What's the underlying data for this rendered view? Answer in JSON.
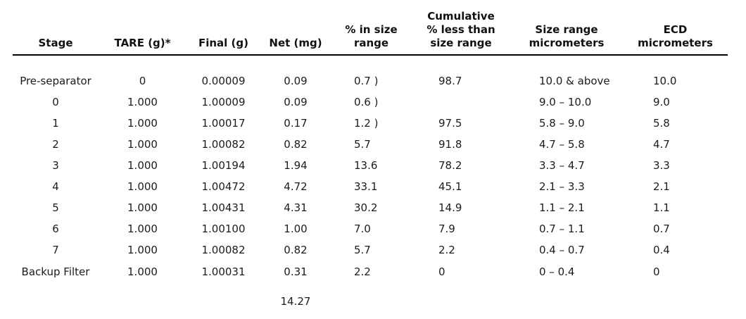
{
  "table": {
    "columns": [
      {
        "key": "stage",
        "label": "Stage"
      },
      {
        "key": "tare",
        "label": "TARE (g)*"
      },
      {
        "key": "final",
        "label": "Final (g)"
      },
      {
        "key": "net",
        "label": "Net (mg)"
      },
      {
        "key": "pct_in_range",
        "label": "% in size\nrange"
      },
      {
        "key": "cum_pct",
        "label": "Cumulative\n% less than\nsize range"
      },
      {
        "key": "size_range",
        "label": "Size range\nmicrometers"
      },
      {
        "key": "ecd",
        "label": "ECD\nmicrometers"
      }
    ],
    "rows": [
      {
        "stage": "Pre-separator",
        "tare": "0",
        "final": "0.00009",
        "net": "0.09",
        "pct_in_range": "0.7 )",
        "cum_pct": "98.7",
        "size_range": "10.0 & above",
        "ecd": "10.0"
      },
      {
        "stage": "0",
        "tare": "1.000",
        "final": "1.00009",
        "net": "0.09",
        "pct_in_range": "0.6 )",
        "cum_pct": "",
        "size_range": "9.0 – 10.0",
        "ecd": "9.0"
      },
      {
        "stage": "1",
        "tare": "1.000",
        "final": "1.00017",
        "net": "0.17",
        "pct_in_range": "1.2 )",
        "cum_pct": "97.5",
        "size_range": "5.8 – 9.0",
        "ecd": "5.8"
      },
      {
        "stage": "2",
        "tare": "1.000",
        "final": "1.00082",
        "net": "0.82",
        "pct_in_range": "5.7",
        "cum_pct": "91.8",
        "size_range": "4.7 – 5.8",
        "ecd": "4.7"
      },
      {
        "stage": "3",
        "tare": "1.000",
        "final": "1.00194",
        "net": "1.94",
        "pct_in_range": "13.6",
        "cum_pct": "78.2",
        "size_range": "3.3 – 4.7",
        "ecd": "3.3"
      },
      {
        "stage": "4",
        "tare": "1.000",
        "final": "1.00472",
        "net": "4.72",
        "pct_in_range": "33.1",
        "cum_pct": "45.1",
        "size_range": "2.1 – 3.3",
        "ecd": "2.1"
      },
      {
        "stage": "5",
        "tare": "1.000",
        "final": "1.00431",
        "net": "4.31",
        "pct_in_range": "30.2",
        "cum_pct": "14.9",
        "size_range": "1.1 – 2.1",
        "ecd": "1.1"
      },
      {
        "stage": "6",
        "tare": "1.000",
        "final": "1.00100",
        "net": "1.00",
        "pct_in_range": "7.0",
        "cum_pct": "7.9",
        "size_range": "0.7 – 1.1",
        "ecd": "0.7"
      },
      {
        "stage": "7",
        "tare": "1.000",
        "final": "1.00082",
        "net": "0.82",
        "pct_in_range": "5.7",
        "cum_pct": "2.2",
        "size_range": "0.4 – 0.7",
        "ecd": "0.4"
      },
      {
        "stage": "Backup Filter",
        "tare": "1.000",
        "final": "1.00031",
        "net": "0.31",
        "pct_in_range": "2.2",
        "cum_pct": "0",
        "size_range": "0 – 0.4",
        "ecd": "0"
      }
    ],
    "total_net": "14.27"
  }
}
